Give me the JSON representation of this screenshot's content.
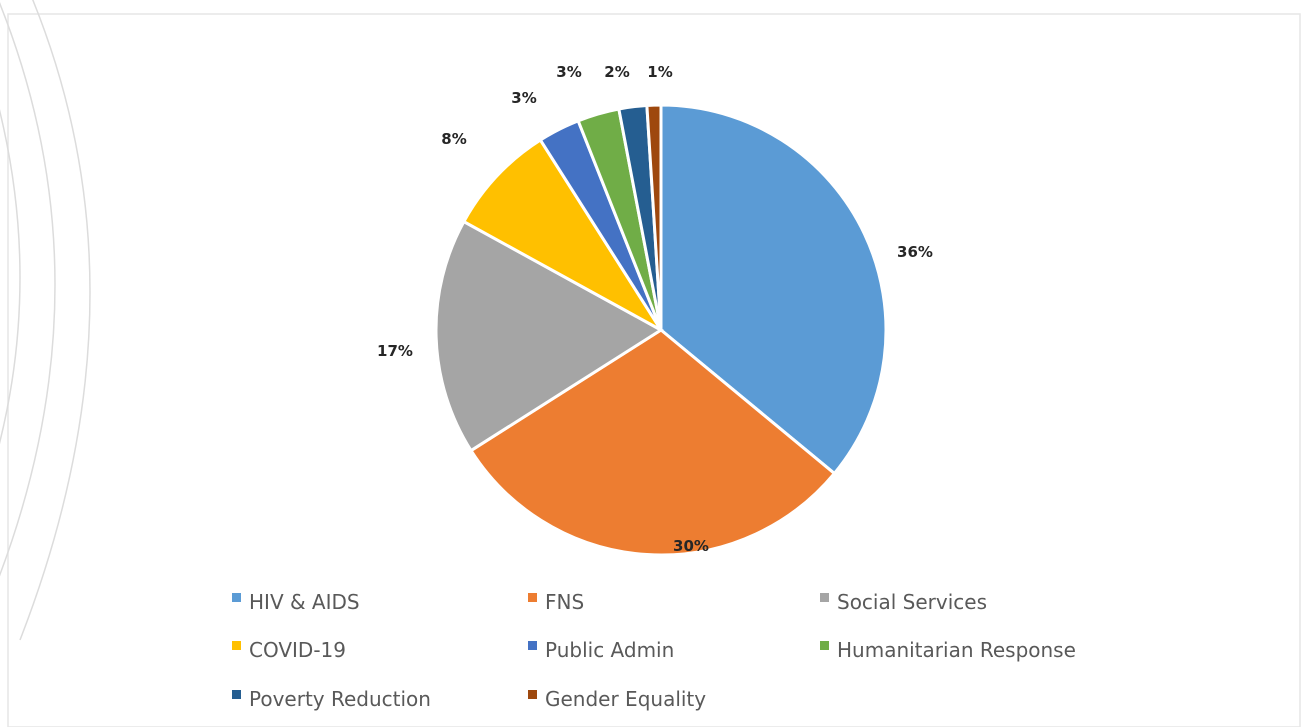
{
  "chart_data": {
    "type": "pie",
    "categories": [
      "HIV & AIDS",
      "FNS",
      "Social Services",
      "COVID-19",
      "Public Admin",
      "Humanitarian Response",
      "Poverty Reduction",
      "Gender Equality"
    ],
    "values": [
      36,
      30,
      17,
      8,
      3,
      3,
      2,
      1
    ],
    "labels": [
      "36%",
      "30%",
      "17%",
      "8%",
      "3%",
      "3%",
      "2%",
      "1%"
    ],
    "colors": [
      "#5B9BD5",
      "#ED7D31",
      "#A5A5A5",
      "#FFC000",
      "#4472C4",
      "#70AD47",
      "#255E91",
      "#9E480E"
    ],
    "legend_position": "bottom"
  }
}
